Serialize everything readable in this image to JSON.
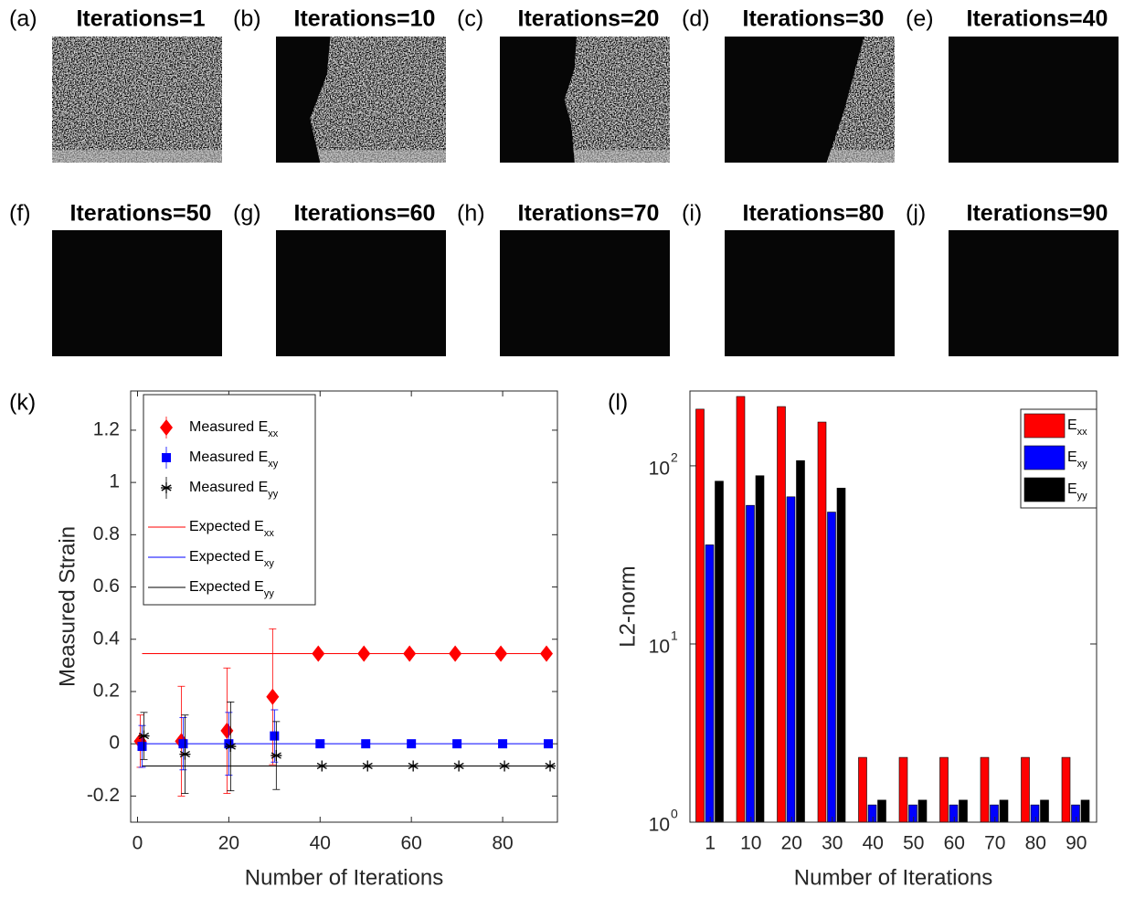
{
  "panels": [
    {
      "label": "(a)",
      "title": "Iterations=1"
    },
    {
      "label": "(b)",
      "title": "Iterations=10"
    },
    {
      "label": "(c)",
      "title": "Iterations=20"
    },
    {
      "label": "(d)",
      "title": "Iterations=30"
    },
    {
      "label": "(e)",
      "title": "Iterations=40"
    },
    {
      "label": "(f)",
      "title": "Iterations=50"
    },
    {
      "label": "(g)",
      "title": "Iterations=60"
    },
    {
      "label": "(h)",
      "title": "Iterations=70"
    },
    {
      "label": "(i)",
      "title": "Iterations=80"
    },
    {
      "label": "(j)",
      "title": "Iterations=90"
    }
  ],
  "chart_data": [
    {
      "type": "errorbar",
      "panel_label": "(k)",
      "xlabel": "Number of Iterations",
      "ylabel": "Measured Strain",
      "x": [
        1,
        10,
        20,
        30,
        40,
        50,
        60,
        70,
        80,
        90
      ],
      "xlim": [
        -1.5,
        92
      ],
      "xticks": [
        0,
        20,
        40,
        60,
        80
      ],
      "ylim": [
        -0.3,
        1.35
      ],
      "yticks": [
        -0.2,
        0,
        0.2,
        0.4,
        0.6,
        0.8,
        1,
        1.2
      ],
      "series": [
        {
          "name": "Measured E",
          "sub": "xx",
          "color": "#ff0000",
          "marker": "diamond",
          "values": [
            0.01,
            0.01,
            0.05,
            0.18,
            0.345,
            0.345,
            0.345,
            0.345,
            0.345,
            0.345
          ],
          "errors": [
            0.1,
            0.21,
            0.24,
            0.26,
            0,
            0,
            0,
            0,
            0,
            0
          ]
        },
        {
          "name": "Measured E",
          "sub": "xy",
          "color": "#0000ff",
          "marker": "square",
          "values": [
            -0.01,
            0,
            0,
            0.03,
            0,
            0,
            0,
            0,
            0,
            0
          ],
          "errors": [
            0.08,
            0.1,
            0.12,
            0.1,
            0,
            0,
            0,
            0,
            0,
            0
          ]
        },
        {
          "name": "Measured E",
          "sub": "yy",
          "color": "#000000",
          "marker": "asterisk",
          "values": [
            0.03,
            -0.04,
            -0.01,
            -0.045,
            -0.085,
            -0.085,
            -0.085,
            -0.085,
            -0.085,
            -0.085
          ],
          "errors": [
            0.09,
            0.15,
            0.17,
            0.13,
            0,
            0,
            0,
            0,
            0,
            0
          ]
        }
      ],
      "lines": [
        {
          "name": "Expected E",
          "sub": "xx",
          "color": "#ff0000",
          "value": 0.345
        },
        {
          "name": "Expected E",
          "sub": "xy",
          "color": "#0000ff",
          "value": 0
        },
        {
          "name": "Expected E",
          "sub": "yy",
          "color": "#000000",
          "value": -0.085
        }
      ]
    },
    {
      "type": "bar",
      "panel_label": "(l)",
      "xlabel": "Number of Iterations",
      "ylabel": "L2-norm",
      "log_scale": true,
      "categories": [
        "1",
        "10",
        "20",
        "30",
        "40",
        "50",
        "60",
        "70",
        "80",
        "90"
      ],
      "ylim": [
        1,
        263
      ],
      "yticks": [
        {
          "value": 1,
          "label": "10",
          "exponent": "0"
        },
        {
          "value": 10,
          "label": "10",
          "exponent": "1"
        },
        {
          "value": 100,
          "label": "10",
          "exponent": "2"
        }
      ],
      "legend": "upper right",
      "series": [
        {
          "name": "E",
          "sub": "xx",
          "color": "#ff0000",
          "values": [
            208,
            245,
            215,
            176,
            2.31,
            2.31,
            2.31,
            2.31,
            2.31,
            2.31
          ]
        },
        {
          "name": "E",
          "sub": "xy",
          "color": "#0000ff",
          "values": [
            36,
            60,
            67,
            55,
            1.25,
            1.25,
            1.25,
            1.25,
            1.25,
            1.25
          ]
        },
        {
          "name": "E",
          "sub": "yy",
          "color": "#000000",
          "values": [
            82,
            88,
            107,
            75,
            1.33,
            1.33,
            1.33,
            1.33,
            1.33,
            1.33
          ]
        }
      ]
    }
  ]
}
